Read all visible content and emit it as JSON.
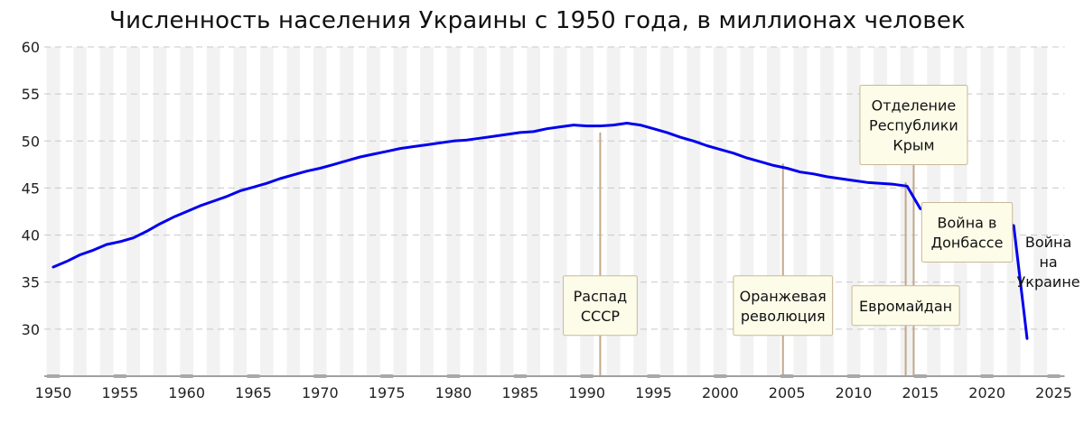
{
  "chart_data": {
    "type": "line",
    "title": "Численность населения Украины с 1950 года, в миллионах человек",
    "xlabel": "",
    "ylabel": "",
    "xlim": [
      1950,
      2027
    ],
    "ylim": [
      25,
      60
    ],
    "x_ticks": [
      1950,
      1955,
      1960,
      1965,
      1970,
      1975,
      1980,
      1985,
      1990,
      1995,
      2000,
      2005,
      2010,
      2015,
      2020,
      2025
    ],
    "y_ticks": [
      30,
      35,
      40,
      45,
      50,
      55,
      60
    ],
    "grid": {
      "horizontal": "dashed",
      "vertical_year_bands": true
    },
    "series_color": "#0000ee",
    "series": [
      {
        "name": "",
        "x": [
          1950,
          1951,
          1952,
          1953,
          1954,
          1955,
          1956,
          1957,
          1958,
          1959,
          1960,
          1961,
          1962,
          1963,
          1964,
          1965,
          1966,
          1967,
          1968,
          1969,
          1970,
          1971,
          1972,
          1973,
          1974,
          1975,
          1976,
          1977,
          1978,
          1979,
          1980,
          1981,
          1982,
          1983,
          1984,
          1985,
          1986,
          1987,
          1988,
          1989,
          1990,
          1991,
          1992,
          1993,
          1994,
          1995,
          1996,
          1997,
          1998,
          1999,
          2000,
          2001,
          2002,
          2003,
          2004,
          2005,
          2006,
          2007,
          2008,
          2009,
          2010,
          2011,
          2012,
          2013,
          2014,
          2015,
          2016,
          2017,
          2018,
          2019,
          2020,
          2021,
          2022,
          2023
        ],
        "values": [
          36.6,
          37.2,
          37.9,
          38.4,
          39.0,
          39.3,
          39.7,
          40.4,
          41.2,
          41.9,
          42.5,
          43.1,
          43.6,
          44.1,
          44.7,
          45.1,
          45.5,
          46.0,
          46.4,
          46.8,
          47.1,
          47.5,
          47.9,
          48.3,
          48.6,
          48.9,
          49.2,
          49.4,
          49.6,
          49.8,
          50.0,
          50.1,
          50.3,
          50.5,
          50.7,
          50.9,
          51.0,
          51.3,
          51.5,
          51.7,
          51.6,
          51.6,
          51.7,
          51.9,
          51.7,
          51.3,
          50.9,
          50.4,
          50.0,
          49.5,
          49.1,
          48.7,
          48.2,
          47.8,
          47.4,
          47.1,
          46.7,
          46.5,
          46.2,
          46.0,
          45.8,
          45.6,
          45.5,
          45.4,
          45.2,
          42.8,
          42.6,
          42.4,
          42.2,
          42.2,
          41.7,
          41.4,
          41.0,
          29.0
        ]
      }
    ],
    "annotations": [
      {
        "year": 1991,
        "lines": [
          "Распад",
          "СССР"
        ],
        "label_center": [
          1991,
          32.5
        ]
      },
      {
        "year": 2004.7,
        "lines": [
          "Оранжевая",
          "революция"
        ],
        "label_center": [
          2004.7,
          32.5
        ]
      },
      {
        "year": 2013.9,
        "lines": [
          "Евромайдан"
        ],
        "label_center": [
          2013.9,
          32.5
        ]
      },
      {
        "year": 2014.5,
        "lines": [
          "Отделение",
          "Республики",
          "Крым"
        ],
        "label_center": [
          2014.5,
          51.7
        ]
      },
      {
        "year": 2018.5,
        "lines": [
          "Война в",
          "Донбассе"
        ],
        "label_center": [
          2018.5,
          40.3
        ]
      },
      {
        "year": 2024.6,
        "lines": [
          "Война",
          "на",
          "Украине"
        ],
        "label_center": [
          2024.6,
          37.2
        ],
        "boxed": false
      }
    ]
  }
}
